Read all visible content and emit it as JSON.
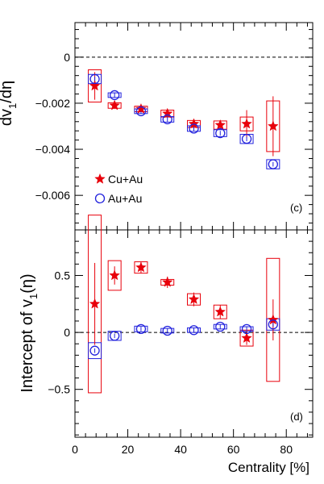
{
  "chart_data": [
    {
      "type": "scatter",
      "panel_label": "(c)",
      "ylabel_main": "dv",
      "ylabel_sub": "1",
      "ylabel_tail": "/dη",
      "ylim": [
        -0.0075,
        0.0015
      ],
      "yticks": [
        0,
        -0.002,
        -0.004,
        -0.006
      ],
      "ytick_labels": [
        "0",
        "−0.002",
        "−0.004",
        "−0.006"
      ],
      "reference_line": 0,
      "legend": {
        "placement": "lower-left",
        "entries": [
          "Cu+Au",
          "Au+Au"
        ]
      },
      "series": [
        {
          "name": "Cu+Au",
          "marker": "star",
          "color": "#e8000b",
          "x": [
            7.5,
            15,
            25,
            35,
            45,
            55,
            65,
            75
          ],
          "y": [
            -0.00125,
            -0.0021,
            -0.00225,
            -0.00245,
            -0.0029,
            -0.00295,
            -0.0029,
            -0.003
          ],
          "stat_err": [
            0.0006,
            0.00015,
            0.00012,
            0.00015,
            0.00018,
            0.0002,
            0.0006,
            0.0013
          ],
          "sys_err": [
            0.0007,
            0.00012,
            0.00012,
            0.00015,
            0.00015,
            0.00018,
            0.0003,
            0.0011
          ]
        },
        {
          "name": "Au+Au",
          "marker": "open-circle",
          "color": "#2222dd",
          "x": [
            7.5,
            15,
            25,
            35,
            45,
            55,
            65,
            75
          ],
          "y": [
            -0.00095,
            -0.00165,
            -0.00235,
            -0.0027,
            -0.0031,
            -0.0033,
            -0.00355,
            -0.00465
          ],
          "stat_err": [
            0.0001,
            0.0001,
            0.0001,
            0.0001,
            0.0001,
            0.0001,
            0.0001,
            0.0001
          ],
          "sys_err": [
            0.0002,
            0.0001,
            0.0001,
            0.00012,
            0.00012,
            0.00015,
            0.0002,
            0.0002
          ]
        }
      ]
    },
    {
      "type": "scatter",
      "panel_label": "(d)",
      "ylabel_main": "Intercept of v",
      "ylabel_sub": "1",
      "ylabel_tail": "(η)",
      "xlabel": "Centrality [%]",
      "xlim": [
        0,
        90
      ],
      "xticks": [
        0,
        20,
        40,
        60,
        80
      ],
      "ylim": [
        -0.92,
        0.9
      ],
      "yticks": [
        0.5,
        0,
        -0.5
      ],
      "ytick_labels": [
        "0.5",
        "0",
        "−0.5"
      ],
      "reference_line": 0,
      "series": [
        {
          "name": "Cu+Au",
          "marker": "star",
          "color": "#e8000b",
          "x": [
            7.5,
            15,
            25,
            35,
            45,
            55,
            65,
            75
          ],
          "y": [
            0.25,
            0.5,
            0.57,
            0.44,
            0.29,
            0.18,
            -0.05,
            0.11
          ],
          "stat_err": [
            0.36,
            0.08,
            0.05,
            0.05,
            0.06,
            0.06,
            0.06,
            0.18
          ],
          "sys_err": [
            0.78,
            0.13,
            0.05,
            0.025,
            0.05,
            0.06,
            0.07,
            0.54
          ]
        },
        {
          "name": "Au+Au",
          "marker": "open-circle",
          "color": "#2222dd",
          "x": [
            7.5,
            15,
            25,
            35,
            45,
            55,
            65,
            75
          ],
          "y": [
            -0.16,
            -0.03,
            0.03,
            0.015,
            0.02,
            0.05,
            0.03,
            0.07
          ],
          "stat_err": [
            0.02,
            0.02,
            0.02,
            0.02,
            0.02,
            0.02,
            0.02,
            0.02
          ],
          "sys_err": [
            0.07,
            0.04,
            0.025,
            0.02,
            0.02,
            0.02,
            0.02,
            0.05
          ]
        }
      ]
    }
  ]
}
